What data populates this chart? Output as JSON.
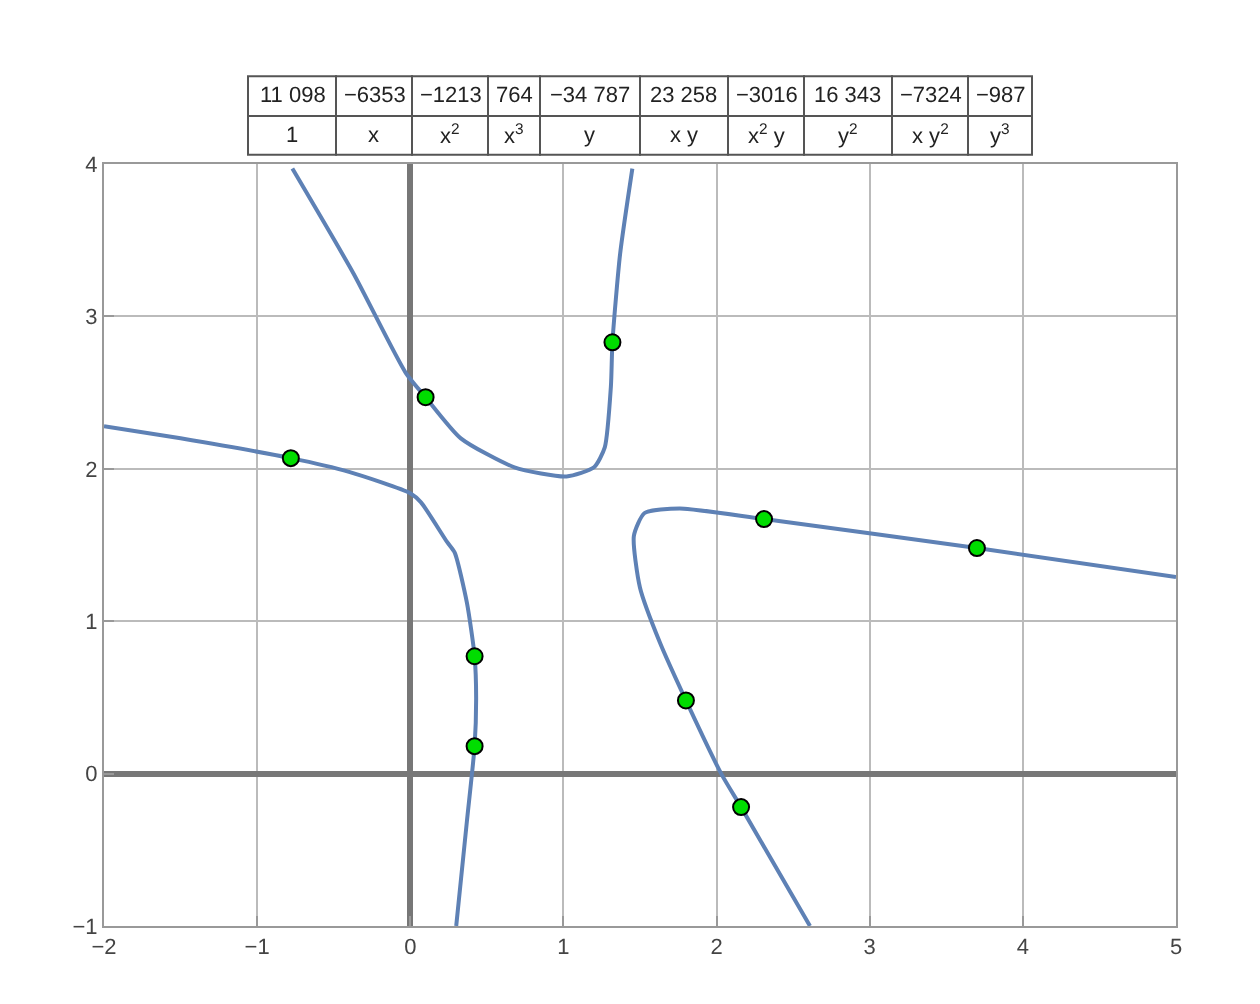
{
  "chart_data": {
    "type": "line",
    "annotations": [
      "11 098",
      "−6353",
      "−1213",
      "764",
      "−34 787",
      "23 258",
      "−3016",
      "16 343",
      "−7324",
      "−987",
      "1",
      "x",
      "x$^{2}$",
      "x$^{3}$",
      "y",
      "x y",
      "x$^{2}$ y",
      "y$^{2}$",
      "x y$^{2}$",
      "y$^{3}$"
    ],
    "series": [
      {
        "color": "#5e81b5",
        "x": [
          -2,
          -1.5,
          -0.78,
          -0.4,
          0,
          0.07,
          0.24,
          0.29,
          0.37,
          0.42,
          0.43,
          0.42,
          0.37,
          0.3
        ],
        "values": [
          2.28,
          2.2,
          2.07,
          1.98,
          1.84,
          1.78,
          1.52,
          1.45,
          1.12,
          0.77,
          0.5,
          0.18,
          -0.31,
          -1.0
        ]
      },
      {
        "color": "#5e81b5",
        "x": [
          -0.77,
          -0.37,
          -0.03,
          0.1,
          0.33,
          0.68,
          1.02,
          1.2,
          1.27,
          1.31,
          1.32,
          1.37,
          1.45
        ],
        "values": [
          3.97,
          3.28,
          2.63,
          2.47,
          2.2,
          2.01,
          1.95,
          2.01,
          2.14,
          2.54,
          2.83,
          3.41,
          3.97
        ]
      },
      {
        "color": "#5e81b5",
        "x": [
          5,
          3.7,
          2.31,
          1.76,
          1.53,
          1.46,
          1.5,
          1.63,
          1.8,
          2.03,
          2.16,
          2.61
        ],
        "values": [
          1.29,
          1.48,
          1.67,
          1.74,
          1.71,
          1.56,
          1.22,
          0.86,
          0.48,
          0.0,
          -0.22,
          -1.0
        ]
      },
      {
        "type": "scatter",
        "color": "#00dd00",
        "marker": "circle",
        "x": [
          -0.78,
          0.1,
          1.32,
          0.42,
          0.42,
          2.31,
          3.7,
          1.8,
          2.16
        ],
        "values": [
          2.07,
          2.47,
          2.83,
          0.77,
          0.18,
          1.67,
          1.48,
          0.48,
          -0.22
        ]
      }
    ],
    "xlim": [
      -2,
      5
    ],
    "ylim": [
      -1,
      4
    ],
    "xticks": [
      {
        "value": -2,
        "label": "−2"
      },
      {
        "value": -1,
        "label": "−1"
      },
      0,
      1,
      2,
      3,
      4,
      5
    ],
    "yticks": [
      {
        "value": -1,
        "label": "−1"
      },
      0,
      1,
      2,
      3,
      4
    ],
    "grid": true,
    "marker": "none",
    "line_style": "solid"
  }
}
